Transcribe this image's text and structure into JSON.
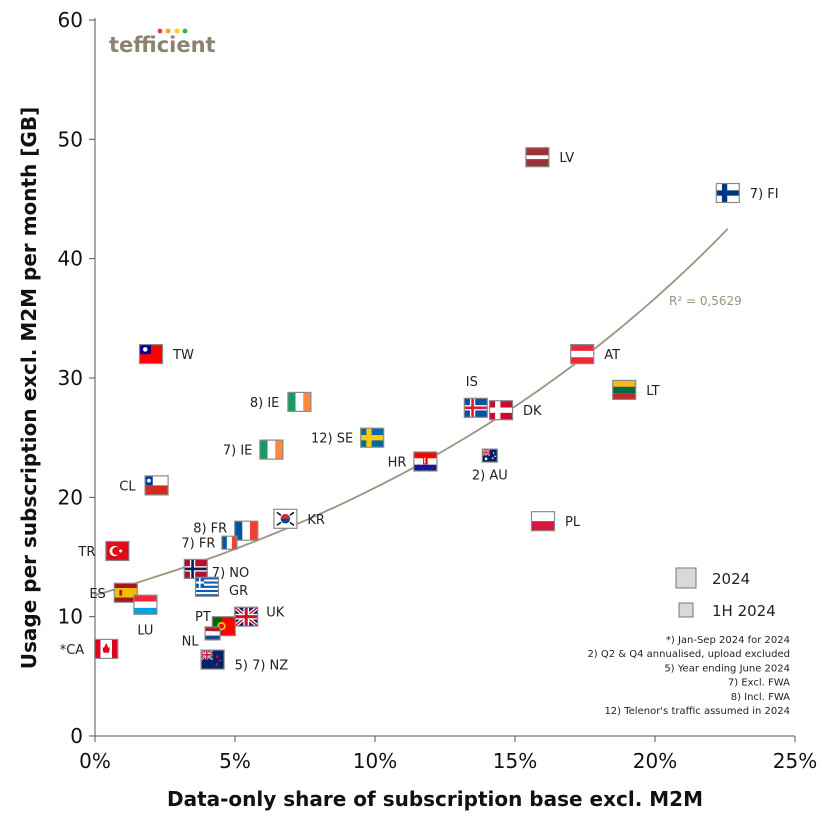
{
  "brand": {
    "text": "tefficient",
    "dot_colors": [
      "#e8403a",
      "#f5a623",
      "#f7d300",
      "#34b24a"
    ]
  },
  "chart_data": {
    "type": "scatter",
    "xlabel": "Data-only share of subscription base excl. M2M",
    "ylabel": "Usage per subscription excl. M2M per month [GB]",
    "xlim": [
      0,
      25
    ],
    "ylim": [
      0,
      60
    ],
    "x_ticks": [
      0,
      5,
      10,
      15,
      20,
      25
    ],
    "x_tick_labels": [
      "0%",
      "5%",
      "10%",
      "15%",
      "20%",
      "25%"
    ],
    "y_ticks": [
      0,
      10,
      20,
      30,
      40,
      50,
      60
    ],
    "y_tick_labels": [
      "0",
      "10",
      "20",
      "30",
      "40",
      "50",
      "60"
    ],
    "grid": false,
    "trendline": {
      "type": "exponential",
      "x_range": [
        0,
        22.6
      ],
      "y_start": 11.8,
      "y_end": 42.5,
      "r2_label": "R² = 0,5629",
      "color": "#9a9480"
    },
    "points": [
      {
        "label": "LV",
        "x": 15.8,
        "y": 48.5,
        "size": "2024",
        "flag": "LV"
      },
      {
        "label": "7) FI",
        "x": 22.6,
        "y": 45.5,
        "size": "2024",
        "flag": "FI"
      },
      {
        "label": "TW",
        "x": 2.0,
        "y": 32.0,
        "size": "2024",
        "flag": "TW"
      },
      {
        "label": "AT",
        "x": 17.4,
        "y": 32.0,
        "size": "2024",
        "flag": "AT"
      },
      {
        "label": "LT",
        "x": 18.9,
        "y": 29.0,
        "size": "2024",
        "flag": "LT"
      },
      {
        "label": "8) IE",
        "x": 7.3,
        "y": 28.0,
        "size": "2024",
        "flag": "IE"
      },
      {
        "label": "IS",
        "x": 13.6,
        "y": 27.5,
        "size": "2024",
        "flag": "IS"
      },
      {
        "label": "DK",
        "x": 14.5,
        "y": 27.3,
        "size": "2024",
        "flag": "DK"
      },
      {
        "label": "12) SE",
        "x": 9.9,
        "y": 25.0,
        "size": "2024",
        "flag": "SE"
      },
      {
        "label": "7) IE",
        "x": 6.3,
        "y": 24.0,
        "size": "2024",
        "flag": "IE"
      },
      {
        "label": "2) AU",
        "x": 14.1,
        "y": 23.5,
        "size": "1H 2024",
        "flag": "AU"
      },
      {
        "label": "HR",
        "x": 11.8,
        "y": 23.0,
        "size": "2024",
        "flag": "HR"
      },
      {
        "label": "CL",
        "x": 2.2,
        "y": 21.0,
        "size": "2024",
        "flag": "CL"
      },
      {
        "label": "KR",
        "x": 6.8,
        "y": 18.2,
        "size": "2024",
        "flag": "KR"
      },
      {
        "label": "PL",
        "x": 16.0,
        "y": 18.0,
        "size": "2024",
        "flag": "PL"
      },
      {
        "label": "8) FR",
        "x": 5.4,
        "y": 17.2,
        "size": "2024",
        "flag": "FR"
      },
      {
        "label": "7) FR",
        "x": 4.8,
        "y": 16.2,
        "size": "1H 2024",
        "flag": "FR"
      },
      {
        "label": "TR",
        "x": 0.8,
        "y": 15.5,
        "size": "2024",
        "flag": "TR"
      },
      {
        "label": "7) NO",
        "x": 3.6,
        "y": 14.0,
        "size": "2024",
        "flag": "NO"
      },
      {
        "label": "GR",
        "x": 4.0,
        "y": 12.5,
        "size": "2024",
        "flag": "GR"
      },
      {
        "label": "ES",
        "x": 1.1,
        "y": 12.0,
        "size": "2024",
        "flag": "ES"
      },
      {
        "label": "LU",
        "x": 1.8,
        "y": 11.0,
        "size": "2024",
        "flag": "LU"
      },
      {
        "label": "UK",
        "x": 5.4,
        "y": 10.0,
        "size": "2024",
        "flag": "UK"
      },
      {
        "label": "PT",
        "x": 4.6,
        "y": 9.2,
        "size": "2024",
        "flag": "PT"
      },
      {
        "label": "NL",
        "x": 4.2,
        "y": 8.6,
        "size": "1H 2024",
        "flag": "NL"
      },
      {
        "label": "*CA",
        "x": 0.4,
        "y": 7.3,
        "size": "2024",
        "flag": "CA"
      },
      {
        "label": "5) 7) NZ",
        "x": 4.2,
        "y": 6.4,
        "size": "2024",
        "flag": "NZ"
      }
    ],
    "legend": [
      {
        "label": "2024",
        "size": "2024"
      },
      {
        "label": "1H 2024",
        "size": "1H 2024"
      }
    ],
    "legend_position": "bottom-right",
    "notes": [
      "*) Jan-Sep 2024 for 2024",
      "2) Q2 & Q4 annualised, upload excluded",
      "5) Year ending June 2024",
      "7) Excl. FWA",
      "8) Incl. FWA",
      "12) Telenor's traffic assumed in 2024"
    ]
  }
}
